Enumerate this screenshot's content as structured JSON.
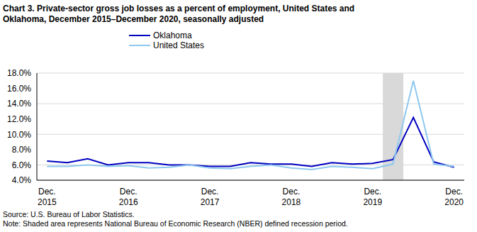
{
  "chart_data": {
    "type": "line",
    "title": "Chart 3. Private-sector gross job losses as a percent of employment, United States and Oklahoma, December 2015–December 2020, seasonally adjusted",
    "categories": [
      "Dec. 2015",
      null,
      null,
      null,
      "Dec. 2016",
      null,
      null,
      null,
      "Dec. 2017",
      null,
      null,
      null,
      "Dec. 2018",
      null,
      null,
      null,
      "Dec. 2019",
      null,
      null,
      null,
      "Dec. 2020"
    ],
    "series": [
      {
        "name": "Oklahoma",
        "color": "#0000c0",
        "values": [
          6.5,
          6.3,
          6.8,
          6.0,
          6.3,
          6.3,
          6.0,
          6.0,
          5.8,
          5.8,
          6.3,
          6.1,
          6.1,
          5.8,
          6.3,
          6.1,
          6.2,
          6.7,
          12.2,
          6.4,
          5.7
        ]
      },
      {
        "name": "United States",
        "color": "#8ec8f0",
        "values": [
          5.8,
          5.8,
          6.0,
          5.8,
          5.9,
          5.6,
          5.7,
          6.0,
          5.6,
          5.5,
          5.8,
          6.0,
          5.6,
          5.4,
          5.8,
          5.7,
          5.5,
          6.1,
          17.0,
          6.1,
          5.8
        ]
      }
    ],
    "recession": [
      false,
      false,
      false,
      false,
      false,
      false,
      false,
      false,
      false,
      false,
      false,
      false,
      false,
      false,
      false,
      false,
      false,
      true,
      false,
      false,
      false
    ],
    "ylim": [
      4,
      18
    ],
    "yticks": [
      {
        "value": 4,
        "label": "4.0%"
      },
      {
        "value": 6,
        "label": "6.0%"
      },
      {
        "value": 8,
        "label": "8.0%"
      },
      {
        "value": 10,
        "label": "10.0%"
      },
      {
        "value": 12,
        "label": "12.0%"
      },
      {
        "value": 14,
        "label": "14.0%"
      },
      {
        "value": 16,
        "label": "16.0%"
      },
      {
        "value": 18,
        "label": "18.0%"
      }
    ],
    "grid": true,
    "legend": "upper left",
    "source": "Source: U.S. Bureau of Labor Statistics.",
    "note": "Note: Shaded area represents National Bureau of Economic Research (NBER) defined recession period."
  }
}
